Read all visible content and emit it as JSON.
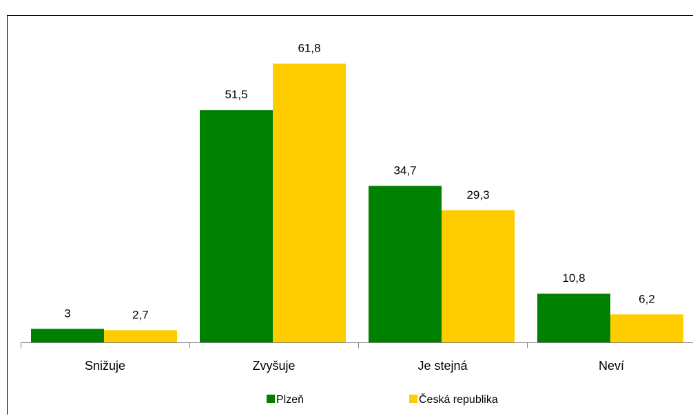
{
  "chart_data": {
    "type": "bar",
    "categories": [
      "Snižuje",
      "Zvyšuje",
      "Je stejná",
      "Neví"
    ],
    "series": [
      {
        "name": "Plzeň",
        "values": [
          3,
          51.5,
          34.7,
          10.8
        ],
        "color": "#008000"
      },
      {
        "name": "Česká republika",
        "values": [
          2.7,
          61.8,
          29.3,
          6.2
        ],
        "color": "#ffcc00"
      }
    ],
    "data_labels": [
      [
        "3",
        "51,5",
        "34,7",
        "10,8"
      ],
      [
        "2,7",
        "61,8",
        "29,3",
        "6,2"
      ]
    ],
    "ylim": [
      0,
      62.5
    ],
    "grid": false,
    "legend_position": "bottom",
    "colors": {
      "background": "#ffffff",
      "border": "#000000",
      "axis": "#808080"
    }
  }
}
